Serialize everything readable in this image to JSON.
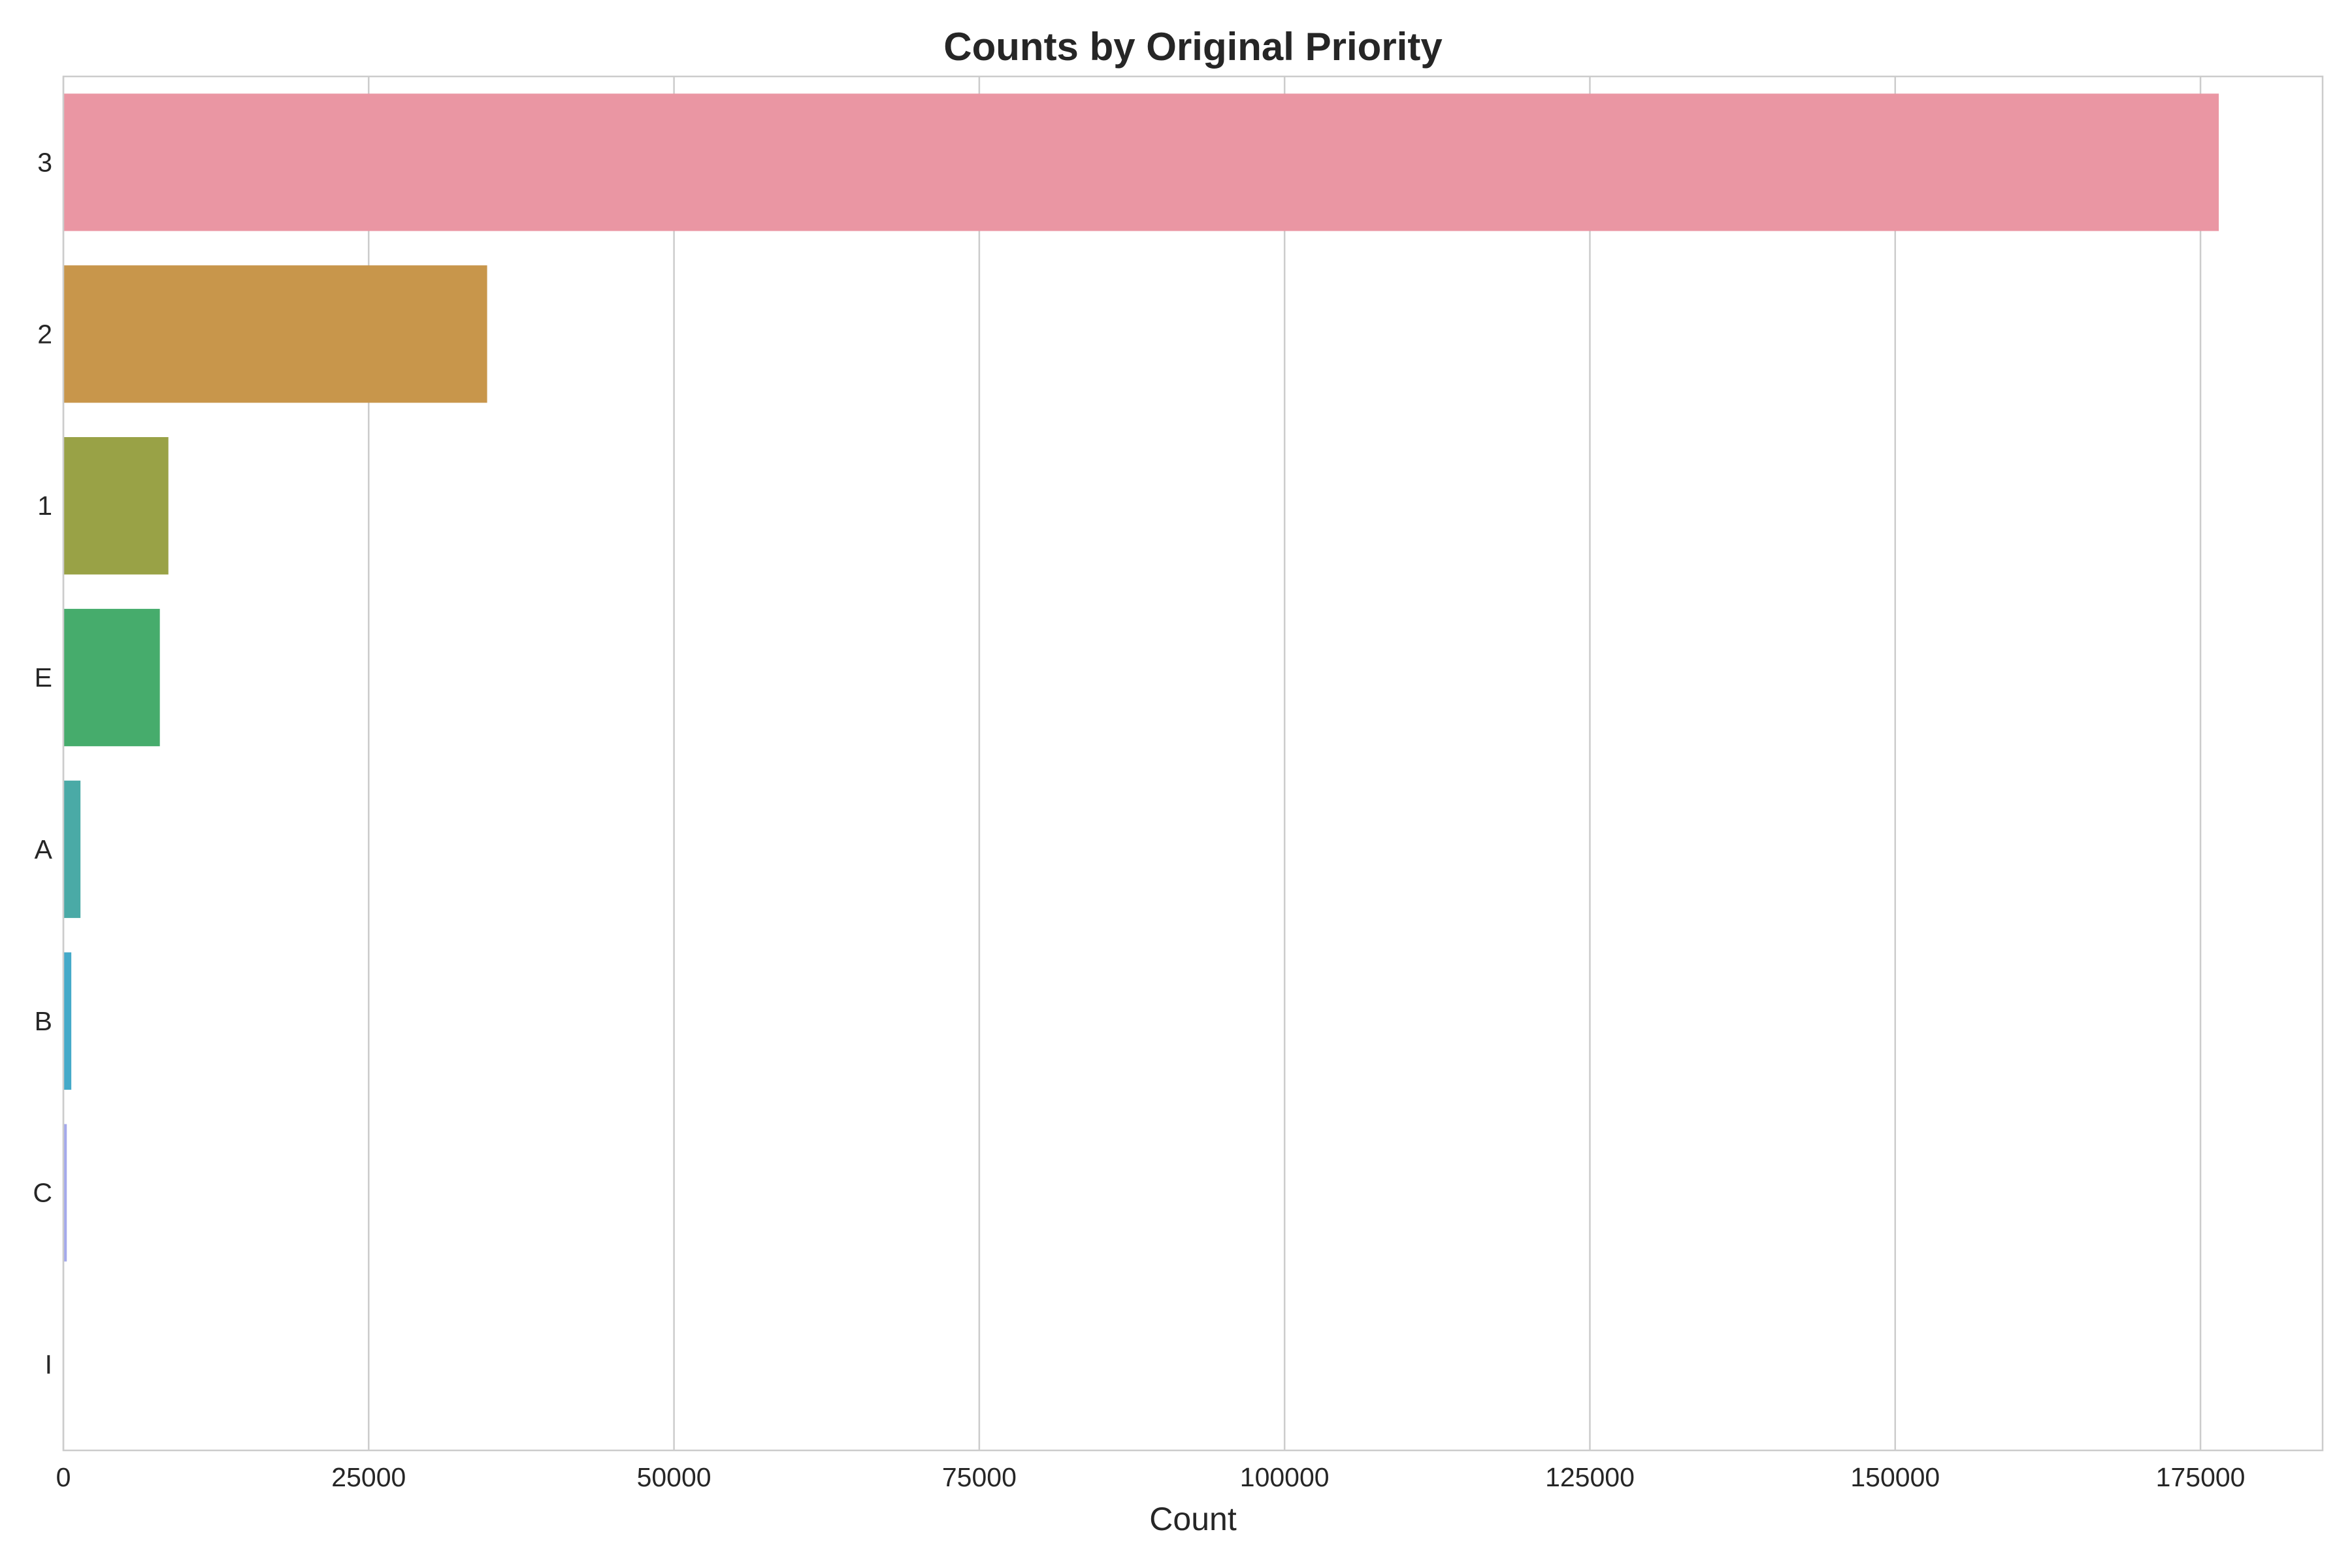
{
  "chart_data": {
    "type": "bar",
    "orientation": "horizontal",
    "title": "Counts by Original Priority",
    "xlabel": "Count",
    "ylabel": "",
    "xlim": [
      0,
      185000
    ],
    "xticks": [
      0,
      25000,
      50000,
      75000,
      100000,
      125000,
      150000,
      175000
    ],
    "grid": true,
    "legend": "none",
    "categories": [
      "3",
      "2",
      "1",
      "E",
      "A",
      "B",
      "C",
      "I"
    ],
    "values": [
      176500,
      34700,
      8600,
      7900,
      1400,
      650,
      280,
      20
    ],
    "colors": [
      "#ea96a3",
      "#c8964b",
      "#99a246",
      "#46ac6c",
      "#4aaaa6",
      "#45aac9",
      "#a4a9ec",
      "#e691d9"
    ]
  }
}
